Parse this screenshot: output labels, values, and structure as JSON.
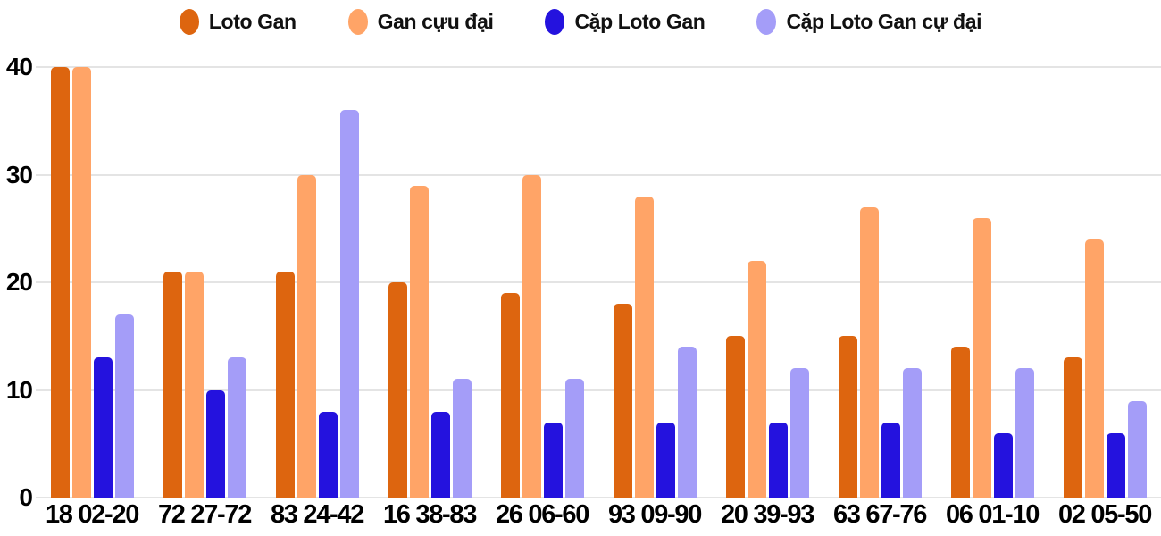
{
  "chart_data": {
    "type": "bar",
    "title": "",
    "xlabel": "",
    "ylabel": "",
    "categories": [
      "18 02-20",
      "72 27-72",
      "83 24-42",
      "16 38-83",
      "26 06-60",
      "93 09-90",
      "20 39-93",
      "63 67-76",
      "06 01-10",
      "02 05-50"
    ],
    "series": [
      {
        "name": "Loto Gan",
        "color": "#DD650F",
        "values": [
          40,
          21,
          21,
          20,
          19,
          18,
          15,
          15,
          14,
          13
        ]
      },
      {
        "name": "Gan cựu đại",
        "color": "#FFA467",
        "values": [
          40,
          21,
          30,
          29,
          30,
          28,
          22,
          27,
          26,
          24
        ]
      },
      {
        "name": "Cặp Loto Gan",
        "color": "#2412DE",
        "values": [
          13,
          10,
          8,
          8,
          7,
          7,
          7,
          7,
          6,
          6
        ]
      },
      {
        "name": "Cặp Loto Gan cự đại",
        "color": "#A49DF8",
        "values": [
          17,
          13,
          36,
          11,
          11,
          14,
          12,
          12,
          12,
          9
        ]
      }
    ],
    "y_ticks": [
      0,
      10,
      20,
      30,
      40
    ],
    "ylim": [
      0,
      40
    ],
    "grid": true,
    "legend_position": "top"
  },
  "style": {
    "grid_color": "#E4E4E4",
    "axis_text_color": "#000000",
    "legend_text_color": "#111111",
    "background_color": "#FFFFFF"
  }
}
